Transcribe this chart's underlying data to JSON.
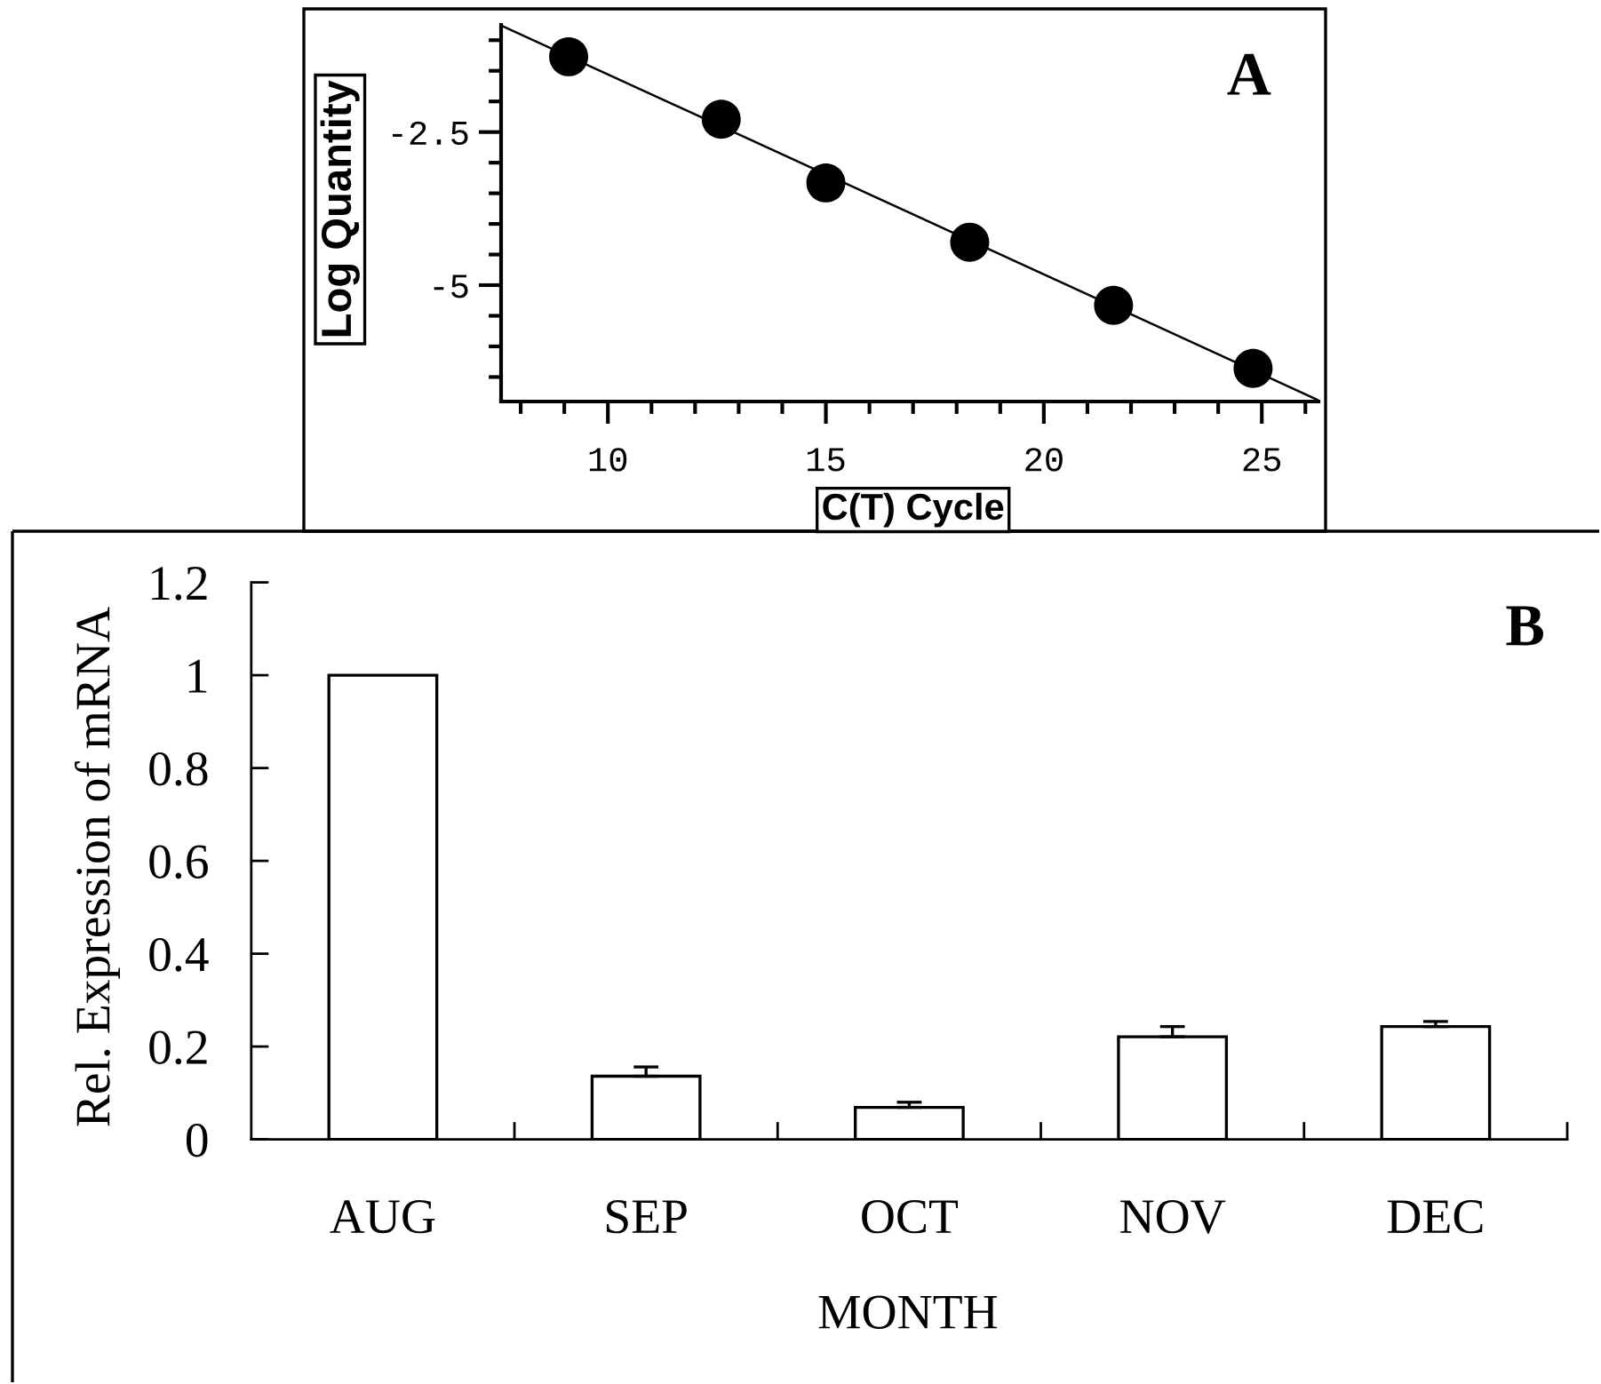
{
  "chart_data": [
    {
      "type": "scatter",
      "xlabel": "C(T) Cycle",
      "ylabel": "Log Quantity",
      "annotations": [
        "A"
      ],
      "marker": "circle",
      "series": [
        {
          "type": "scatter",
          "color": "#000000",
          "x": [
            9.1,
            12.6,
            15.0,
            18.3,
            21.6,
            24.8
          ],
          "values": [
            -1.27,
            -2.29,
            -3.33,
            -4.3,
            -5.33,
            -6.36
          ]
        },
        {
          "type": "line",
          "color": "#000000",
          "marker": "none",
          "line_style": "solid",
          "x": [
            7.55,
            26.3
          ],
          "values": [
            -0.76,
            -6.88
          ]
        }
      ],
      "xlim": [
        7.55,
        26.3
      ],
      "ylim": [
        -6.9,
        -0.75
      ],
      "xticks": [
        {
          "value": 8,
          "label": null
        },
        {
          "value": 9,
          "label": null
        },
        10,
        {
          "value": 11,
          "label": null
        },
        {
          "value": 12,
          "label": null
        },
        {
          "value": 13,
          "label": null
        },
        {
          "value": 14,
          "label": null
        },
        15,
        {
          "value": 16,
          "label": null
        },
        {
          "value": 17,
          "label": null
        },
        {
          "value": 18,
          "label": null
        },
        {
          "value": 19,
          "label": null
        },
        20,
        {
          "value": 21,
          "label": null
        },
        {
          "value": 22,
          "label": null
        },
        {
          "value": 23,
          "label": null
        },
        {
          "value": 24,
          "label": null
        },
        25,
        {
          "value": 26,
          "label": null
        }
      ],
      "yticks": [
        {
          "value": -1,
          "label": null
        },
        {
          "value": -1.5,
          "label": null
        },
        {
          "value": -2,
          "label": null
        },
        -2.5,
        {
          "value": -3,
          "label": null
        },
        {
          "value": -3.5,
          "label": null
        },
        {
          "value": -4,
          "label": null
        },
        {
          "value": -4.5,
          "label": null
        },
        -5,
        {
          "value": -5.5,
          "label": null
        },
        {
          "value": -6,
          "label": null
        },
        {
          "value": -6.5,
          "label": null
        }
      ]
    },
    {
      "type": "bar",
      "xlabel": "MONTH",
      "ylabel": "Rel. Expression of mRNA",
      "annotations": [
        "B"
      ],
      "categories": [
        "AUG",
        "SEP",
        "OCT",
        "NOV",
        "DEC"
      ],
      "values": [
        1.0,
        0.136,
        0.069,
        0.221,
        0.243
      ],
      "color": "#ffffff",
      "errors": [
        null,
        [
          0.136,
          0.156
        ],
        [
          0.069,
          0.08
        ],
        [
          0.221,
          0.243
        ],
        [
          0.243,
          0.254
        ]
      ],
      "ylim": [
        0,
        1.2
      ],
      "yticks": [
        0,
        0.2,
        0.4,
        0.6,
        0.8,
        1,
        1.2
      ]
    }
  ]
}
